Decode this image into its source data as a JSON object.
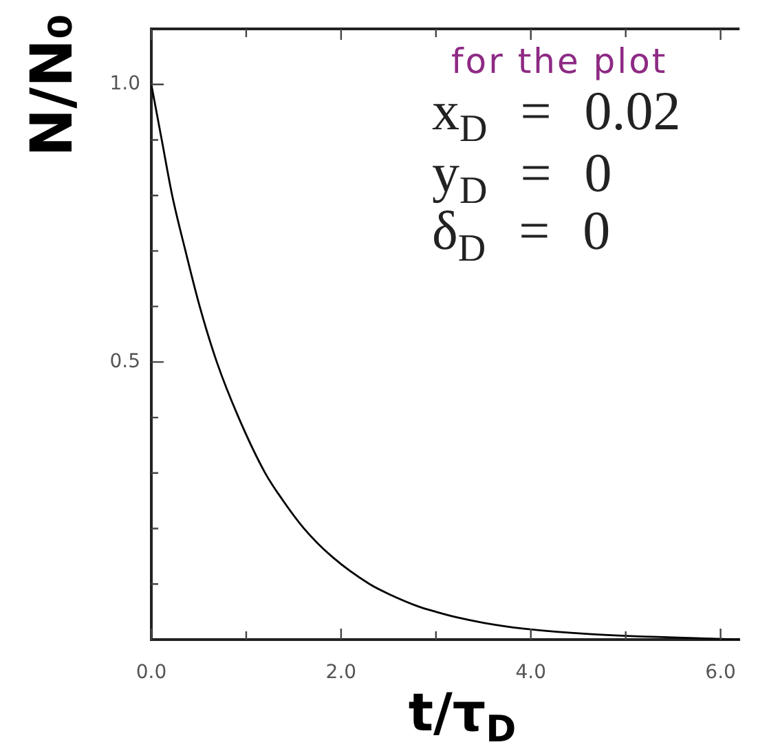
{
  "chart_data": {
    "type": "line",
    "xlabel": "t/τ$_{D}$",
    "ylabel": "N/N₀",
    "annotations": [
      "for the plot",
      "x$_{D}$ = 0.02",
      "y$_{D}$ = 0",
      "δ$_{D}$ = 0"
    ],
    "x": [
      0,
      0.11,
      0.22,
      0.36,
      0.51,
      0.69,
      0.92,
      1.2,
      1.39,
      1.61,
      1.9,
      2.3,
      2.53,
      2.81,
      3.0,
      3.22,
      3.51,
      3.91,
      4.61,
      6.2
    ],
    "series": [
      {
        "color": "#000000",
        "values": [
          1.0,
          0.9,
          0.8,
          0.7,
          0.6,
          0.5,
          0.4,
          0.3,
          0.25,
          0.2,
          0.15,
          0.1,
          0.08,
          0.06,
          0.05,
          0.04,
          0.03,
          0.02,
          0.01,
          0.0
        ]
      }
    ],
    "xlim": [
      0,
      6.2
    ],
    "ylim": [
      0,
      1.1
    ],
    "xticks": [
      {
        "value": 0,
        "label": "0.0"
      },
      {
        "value": 1,
        "label": null
      },
      {
        "value": 2,
        "label": "2.0"
      },
      {
        "value": 3,
        "label": null
      },
      {
        "value": 4,
        "label": "4.0"
      },
      {
        "value": 5,
        "label": null
      },
      {
        "value": 6,
        "label": "6.0"
      }
    ],
    "yticks": [
      {
        "value": 0.1,
        "label": null
      },
      {
        "value": 0.2,
        "label": null
      },
      {
        "value": 0.3,
        "label": null
      },
      {
        "value": 0.4,
        "label": null
      },
      0.5,
      {
        "value": 0.6,
        "label": null
      },
      {
        "value": 0.7,
        "label": null
      },
      {
        "value": 0.8,
        "label": null
      },
      {
        "value": 0.9,
        "label": null
      },
      {
        "value": 1,
        "label": "1.0"
      }
    ],
    "marker": "none",
    "line_style": "solid"
  }
}
